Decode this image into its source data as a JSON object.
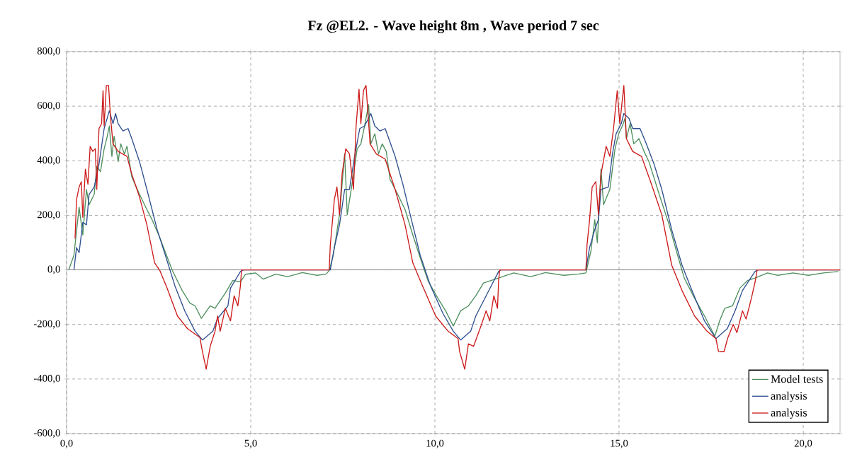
{
  "chart_data": {
    "type": "line",
    "title": "Fz @EL2. - Wave height  8m , Wave period  7 sec",
    "xlim": [
      0,
      21
    ],
    "ylim": [
      -600,
      800
    ],
    "xticks": [
      {
        "value": 0,
        "label": "0,0"
      },
      {
        "value": 5,
        "label": "5,0"
      },
      {
        "value": 10,
        "label": "10,0"
      },
      {
        "value": 15,
        "label": "15,0"
      },
      {
        "value": 20,
        "label": "20,0"
      }
    ],
    "yticks": [
      {
        "value": -600,
        "label": "-600,0"
      },
      {
        "value": -400,
        "label": "-400,0"
      },
      {
        "value": -200,
        "label": "-200,0"
      },
      {
        "value": 0,
        "label": "0,0"
      },
      {
        "value": 200,
        "label": "200,0"
      },
      {
        "value": 400,
        "label": "400,0"
      },
      {
        "value": 600,
        "label": "600,0"
      },
      {
        "value": 800,
        "label": "800,0"
      }
    ],
    "grid": true,
    "legend": "bottom right",
    "marker": "none",
    "line_style": "solid",
    "ref_lines": [
      {
        "axis": "y",
        "value": 0,
        "color": "#808080"
      }
    ],
    "series": [
      {
        "name": "Model tests",
        "color": "#4e8f5e",
        "x": [
          0.06,
          0.2,
          0.34,
          0.44,
          0.54,
          0.61,
          0.75,
          0.82,
          0.92,
          1.02,
          1.09,
          1.16,
          1.23,
          1.29,
          1.4,
          1.47,
          1.57,
          1.64,
          1.77,
          1.98,
          2.18,
          2.32,
          2.53,
          2.66,
          2.87,
          3.14,
          3.35,
          3.49,
          3.66,
          3.9,
          4.03,
          4.31,
          4.51,
          4.72,
          4.86,
          5.13,
          5.34,
          5.68,
          6.0,
          6.4,
          6.8,
          7.05,
          7.13,
          7.24,
          7.41,
          7.55,
          7.62,
          7.75,
          7.89,
          7.99,
          8.09,
          8.2,
          8.26,
          8.37,
          8.47,
          8.57,
          8.68,
          8.78,
          8.99,
          9.19,
          9.4,
          9.6,
          9.81,
          10.08,
          10.29,
          10.5,
          10.7,
          10.91,
          11.11,
          11.32,
          11.52,
          11.73,
          11.93,
          12.14,
          12.6,
          13.0,
          13.5,
          13.9,
          14.1,
          14.24,
          14.34,
          14.41,
          14.51,
          14.58,
          14.75,
          14.89,
          14.99,
          15.09,
          15.16,
          15.2,
          15.3,
          15.4,
          15.54,
          15.68,
          15.81,
          16.09,
          16.36,
          16.57,
          16.77,
          17.05,
          17.32,
          17.6,
          17.73,
          17.87,
          18.08,
          18.28,
          18.49,
          18.69,
          19.03,
          19.31,
          19.72,
          20.14,
          20.55,
          20.95
        ],
        "values": [
          0,
          54,
          230,
          128,
          295,
          239,
          277,
          379,
          360,
          444,
          481,
          527,
          416,
          490,
          397,
          462,
          425,
          453,
          341,
          277,
          221,
          184,
          119,
          72,
          -2,
          -76,
          -122,
          -132,
          -178,
          -132,
          -141,
          -85,
          -39,
          -44,
          -16,
          -11,
          -34,
          -16,
          -25,
          -10,
          -20,
          -15,
          -2,
          54,
          202,
          425,
          202,
          314,
          444,
          462,
          527,
          606,
          462,
          499,
          425,
          462,
          434,
          332,
          277,
          221,
          128,
          45,
          -39,
          -104,
          -150,
          -206,
          -150,
          -132,
          -95,
          -48,
          -39,
          -30,
          -20,
          -11,
          -25,
          -10,
          -20,
          -15,
          -11,
          72,
          184,
          100,
          369,
          239,
          295,
          444,
          499,
          527,
          555,
          481,
          536,
          462,
          481,
          434,
          397,
          277,
          165,
          63,
          -30,
          -104,
          -169,
          -243,
          -187,
          -141,
          -132,
          -67,
          -39,
          -30,
          -11,
          -20,
          -11,
          -20,
          -11,
          -6
        ]
      },
      {
        "name": "analysis",
        "color": "#2e4f8e",
        "x": [
          0.2,
          0.27,
          0.34,
          0.44,
          0.54,
          0.61,
          0.75,
          0.88,
          1.02,
          1.16,
          1.26,
          1.33,
          1.4,
          1.53,
          1.67,
          1.77,
          1.98,
          2.18,
          2.46,
          2.66,
          2.94,
          3.21,
          3.49,
          3.69,
          3.97,
          4.1,
          4.38,
          4.45,
          4.72,
          4.8,
          7.16,
          7.27,
          7.41,
          7.55,
          7.68,
          7.82,
          7.96,
          8.09,
          8.26,
          8.37,
          8.51,
          8.65,
          8.92,
          9.13,
          9.33,
          9.6,
          9.88,
          10.22,
          10.5,
          10.7,
          10.97,
          11.11,
          11.39,
          11.73,
          11.8,
          14.1,
          14.2,
          14.34,
          14.44,
          14.51,
          14.71,
          14.82,
          14.92,
          15.06,
          15.13,
          15.27,
          15.37,
          15.57,
          15.74,
          15.95,
          16.16,
          16.43,
          16.71,
          16.98,
          17.32,
          17.63,
          17.94,
          18.15,
          18.35,
          18.69,
          18.76,
          21.0
        ],
        "values": [
          0,
          82,
          63,
          174,
          165,
          276,
          304,
          388,
          518,
          583,
          536,
          573,
          536,
          509,
          518,
          481,
          397,
          295,
          147,
          63,
          -58,
          -151,
          -225,
          -257,
          -225,
          -178,
          -132,
          -67,
          -6,
          0,
          0,
          82,
          165,
          295,
          295,
          416,
          518,
          527,
          573,
          527,
          509,
          518,
          416,
          314,
          202,
          54,
          -58,
          -160,
          -225,
          -257,
          -225,
          -169,
          -95,
          -6,
          0,
          0,
          82,
          147,
          184,
          295,
          304,
          425,
          499,
          536,
          573,
          555,
          518,
          518,
          462,
          388,
          295,
          147,
          17,
          -76,
          -187,
          -252,
          -215,
          -150,
          -76,
          -6,
          0,
          0
        ]
      },
      {
        "name": "analysis",
        "color": "#cc1a1a",
        "x": [
          0.23,
          0.27,
          0.34,
          0.4,
          0.44,
          0.51,
          0.58,
          0.64,
          0.71,
          0.78,
          0.82,
          0.88,
          0.95,
          0.99,
          1.02,
          1.08,
          1.14,
          1.19,
          1.26,
          1.4,
          1.64,
          1.77,
          1.98,
          2.18,
          2.39,
          2.53,
          2.73,
          3.01,
          3.28,
          3.62,
          3.68,
          3.79,
          3.9,
          4.03,
          4.1,
          4.17,
          4.31,
          4.45,
          4.55,
          4.65,
          4.72,
          4.75,
          7.13,
          7.16,
          7.27,
          7.34,
          7.41,
          7.48,
          7.58,
          7.68,
          7.79,
          7.86,
          7.94,
          7.99,
          8.06,
          8.13,
          8.24,
          8.41,
          8.65,
          8.92,
          9.19,
          9.4,
          9.6,
          10.02,
          10.36,
          10.63,
          10.67,
          10.81,
          10.91,
          11.05,
          11.25,
          11.39,
          11.49,
          11.6,
          11.7,
          11.73,
          11.76,
          14.1,
          14.13,
          14.2,
          14.27,
          14.37,
          14.44,
          14.51,
          14.65,
          14.75,
          14.85,
          14.95,
          15.02,
          15.13,
          15.2,
          15.37,
          15.61,
          15.88,
          16.16,
          16.43,
          16.71,
          17.05,
          17.39,
          17.63,
          17.7,
          17.85,
          17.95,
          18.1,
          18.2,
          18.35,
          18.45,
          18.6,
          18.7,
          18.75,
          21.0
        ],
        "values": [
          114,
          258,
          304,
          323,
          193,
          369,
          314,
          453,
          434,
          444,
          295,
          518,
          536,
          657,
          527,
          676,
          676,
          564,
          462,
          434,
          416,
          351,
          267,
          165,
          26,
          -2,
          -67,
          -169,
          -215,
          -248,
          -294,
          -364,
          -280,
          -225,
          -169,
          -225,
          -141,
          -187,
          -95,
          -132,
          -58,
          0,
          0,
          91,
          258,
          304,
          202,
          351,
          444,
          425,
          295,
          527,
          662,
          536,
          657,
          676,
          462,
          425,
          406,
          295,
          165,
          26,
          -39,
          -169,
          -225,
          -252,
          -299,
          -364,
          -271,
          -280,
          -206,
          -150,
          -187,
          -95,
          -141,
          -39,
          0,
          0,
          91,
          184,
          304,
          323,
          202,
          351,
          453,
          416,
          518,
          657,
          536,
          676,
          481,
          434,
          416,
          314,
          202,
          17,
          -76,
          -169,
          -225,
          -252,
          -299,
          -300,
          -250,
          -200,
          -230,
          -150,
          -180,
          -100,
          -40,
          0,
          0
        ]
      }
    ]
  }
}
